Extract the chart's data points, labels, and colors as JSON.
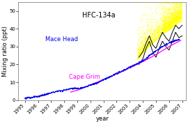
{
  "title": "HFC-134a",
  "xlabel": "year",
  "ylabel": "Mixing ratio (ppt)",
  "xlim": [
    1994.5,
    2007.3
  ],
  "ylim": [
    0,
    55
  ],
  "yticks": [
    0,
    10,
    20,
    30,
    40,
    50
  ],
  "xticks": [
    1995,
    1996,
    1997,
    1998,
    1999,
    2000,
    2001,
    2002,
    2003,
    2004,
    2005,
    2006,
    2007
  ],
  "xtick_labels": [
    "1995",
    "1996",
    "1997",
    "1998",
    "1999",
    "2000",
    "2001",
    "2002",
    "2003",
    "2004",
    "2005",
    "2006",
    "2007"
  ],
  "mace_head_label": "Mace Head",
  "cape_grim_label": "Cape Grim",
  "mace_head_color": "#0000ee",
  "cape_grim_color": "#ff00ff",
  "yellow_color": "#ffff00",
  "black_color": "#000000",
  "bg_color": "#ffffff",
  "title_fontsize": 7,
  "label_fontsize": 6,
  "tick_fontsize": 5,
  "ylabel_fontsize": 6
}
